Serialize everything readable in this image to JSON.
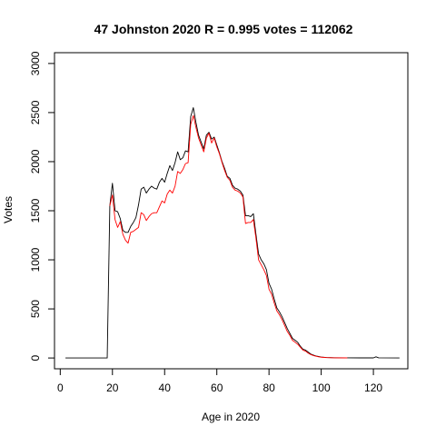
{
  "chart_data": {
    "type": "line",
    "title": "47 Johnston 2020 R = 0.995 votes = 112062",
    "xlabel": "Age in 2020",
    "ylabel": "Votes",
    "xlim": [
      -2.2,
      133.2
    ],
    "ylim": [
      -110,
      3110
    ],
    "x_ticks": [
      0,
      20,
      40,
      60,
      80,
      100,
      120
    ],
    "y_ticks": [
      0,
      500,
      1000,
      1500,
      2000,
      2500,
      3000
    ],
    "grid": false,
    "legend": "none",
    "series": [
      {
        "color": "#000000",
        "points": [
          [
            2,
            0
          ],
          [
            18,
            0
          ],
          [
            19,
            1550
          ],
          [
            20,
            1780
          ],
          [
            21,
            1500
          ],
          [
            22,
            1490
          ],
          [
            23,
            1420
          ],
          [
            24,
            1300
          ],
          [
            25,
            1280
          ],
          [
            26,
            1280
          ],
          [
            27,
            1340
          ],
          [
            28,
            1380
          ],
          [
            29,
            1430
          ],
          [
            30,
            1560
          ],
          [
            31,
            1720
          ],
          [
            32,
            1740
          ],
          [
            33,
            1680
          ],
          [
            34,
            1720
          ],
          [
            35,
            1750
          ],
          [
            36,
            1730
          ],
          [
            37,
            1720
          ],
          [
            38,
            1790
          ],
          [
            39,
            1830
          ],
          [
            40,
            1790
          ],
          [
            41,
            1880
          ],
          [
            42,
            1960
          ],
          [
            43,
            1910
          ],
          [
            44,
            1990
          ],
          [
            45,
            2100
          ],
          [
            46,
            2020
          ],
          [
            47,
            2040
          ],
          [
            48,
            2110
          ],
          [
            49,
            2100
          ],
          [
            50,
            2460
          ],
          [
            51,
            2550
          ],
          [
            52,
            2400
          ],
          [
            53,
            2270
          ],
          [
            54,
            2200
          ],
          [
            55,
            2130
          ],
          [
            56,
            2270
          ],
          [
            57,
            2300
          ],
          [
            58,
            2230
          ],
          [
            59,
            2250
          ],
          [
            60,
            2170
          ],
          [
            61,
            2090
          ],
          [
            62,
            2000
          ],
          [
            63,
            1930
          ],
          [
            64,
            1850
          ],
          [
            65,
            1830
          ],
          [
            66,
            1760
          ],
          [
            67,
            1730
          ],
          [
            68,
            1720
          ],
          [
            69,
            1700
          ],
          [
            70,
            1660
          ],
          [
            71,
            1450
          ],
          [
            72,
            1450
          ],
          [
            73,
            1440
          ],
          [
            74,
            1470
          ],
          [
            75,
            1260
          ],
          [
            76,
            1060
          ],
          [
            77,
            1000
          ],
          [
            78,
            960
          ],
          [
            79,
            900
          ],
          [
            80,
            760
          ],
          [
            81,
            700
          ],
          [
            82,
            600
          ],
          [
            83,
            510
          ],
          [
            84,
            470
          ],
          [
            85,
            420
          ],
          [
            86,
            360
          ],
          [
            87,
            300
          ],
          [
            88,
            250
          ],
          [
            89,
            200
          ],
          [
            90,
            180
          ],
          [
            91,
            160
          ],
          [
            92,
            120
          ],
          [
            93,
            90
          ],
          [
            94,
            80
          ],
          [
            95,
            60
          ],
          [
            96,
            40
          ],
          [
            97,
            30
          ],
          [
            98,
            20
          ],
          [
            99,
            15
          ],
          [
            100,
            10
          ],
          [
            102,
            5
          ],
          [
            105,
            3
          ],
          [
            110,
            2
          ],
          [
            115,
            1
          ],
          [
            120,
            1
          ],
          [
            121,
            12
          ],
          [
            122,
            2
          ],
          [
            130,
            0
          ]
        ]
      },
      {
        "color": "#ff0000",
        "points": [
          [
            19,
            1550
          ],
          [
            20,
            1660
          ],
          [
            21,
            1410
          ],
          [
            22,
            1330
          ],
          [
            23,
            1390
          ],
          [
            24,
            1260
          ],
          [
            25,
            1200
          ],
          [
            26,
            1170
          ],
          [
            27,
            1280
          ],
          [
            28,
            1290
          ],
          [
            29,
            1310
          ],
          [
            30,
            1330
          ],
          [
            31,
            1480
          ],
          [
            32,
            1460
          ],
          [
            33,
            1400
          ],
          [
            34,
            1440
          ],
          [
            35,
            1470
          ],
          [
            36,
            1480
          ],
          [
            37,
            1480
          ],
          [
            38,
            1540
          ],
          [
            39,
            1600
          ],
          [
            40,
            1580
          ],
          [
            41,
            1670
          ],
          [
            42,
            1710
          ],
          [
            43,
            1680
          ],
          [
            44,
            1750
          ],
          [
            45,
            1900
          ],
          [
            46,
            1880
          ],
          [
            47,
            1920
          ],
          [
            48,
            1980
          ],
          [
            49,
            1990
          ],
          [
            50,
            2380
          ],
          [
            51,
            2470
          ],
          [
            52,
            2350
          ],
          [
            53,
            2240
          ],
          [
            54,
            2170
          ],
          [
            55,
            2100
          ],
          [
            56,
            2240
          ],
          [
            57,
            2290
          ],
          [
            58,
            2190
          ],
          [
            59,
            2240
          ],
          [
            60,
            2150
          ],
          [
            61,
            2080
          ],
          [
            62,
            1990
          ],
          [
            63,
            1910
          ],
          [
            64,
            1840
          ],
          [
            65,
            1810
          ],
          [
            66,
            1740
          ],
          [
            67,
            1710
          ],
          [
            68,
            1700
          ],
          [
            69,
            1680
          ],
          [
            70,
            1640
          ],
          [
            71,
            1370
          ],
          [
            72,
            1380
          ],
          [
            73,
            1380
          ],
          [
            74,
            1410
          ],
          [
            75,
            1220
          ],
          [
            76,
            1000
          ],
          [
            77,
            950
          ],
          [
            78,
            900
          ],
          [
            79,
            840
          ],
          [
            80,
            700
          ],
          [
            81,
            650
          ],
          [
            82,
            560
          ],
          [
            83,
            480
          ],
          [
            84,
            440
          ],
          [
            85,
            390
          ],
          [
            86,
            330
          ],
          [
            87,
            270
          ],
          [
            88,
            230
          ],
          [
            89,
            180
          ],
          [
            90,
            160
          ],
          [
            91,
            140
          ],
          [
            92,
            110
          ],
          [
            93,
            80
          ],
          [
            94,
            70
          ],
          [
            95,
            50
          ],
          [
            96,
            35
          ],
          [
            97,
            25
          ],
          [
            98,
            18
          ],
          [
            99,
            12
          ],
          [
            100,
            8
          ],
          [
            102,
            4
          ],
          [
            105,
            2
          ],
          [
            110,
            1
          ]
        ]
      }
    ]
  }
}
